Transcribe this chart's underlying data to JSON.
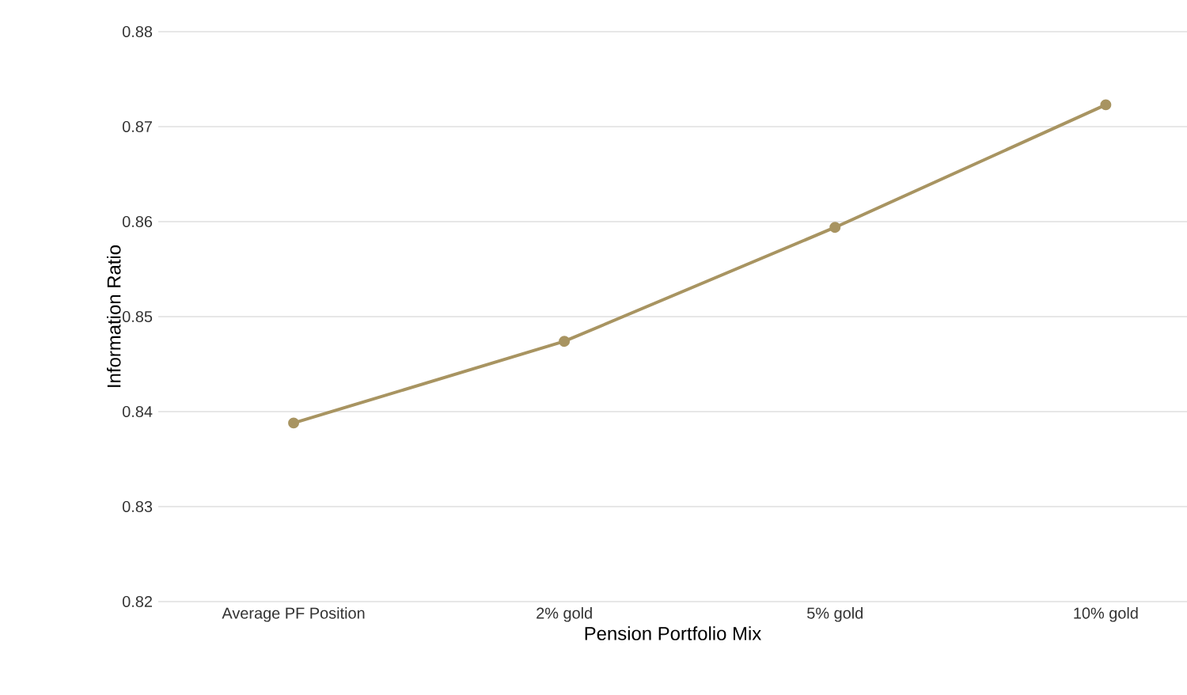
{
  "chart_data": {
    "type": "line",
    "xlabel": "Pension  Portfolio  Mix",
    "ylabel": "Information Ratio",
    "categories": [
      "Average PF Position",
      "2% gold",
      "5% gold",
      "10% gold"
    ],
    "series": [
      {
        "color": "#a89461",
        "values": [
          0.8388,
          0.8474,
          0.8594,
          0.8723
        ]
      }
    ],
    "ylim": [
      0.82,
      0.88
    ],
    "yticks": [
      0.82,
      0.83,
      0.84,
      0.85,
      0.86,
      0.87,
      0.88
    ],
    "grid": "y",
    "marker": "circle",
    "line_style": "solid"
  }
}
